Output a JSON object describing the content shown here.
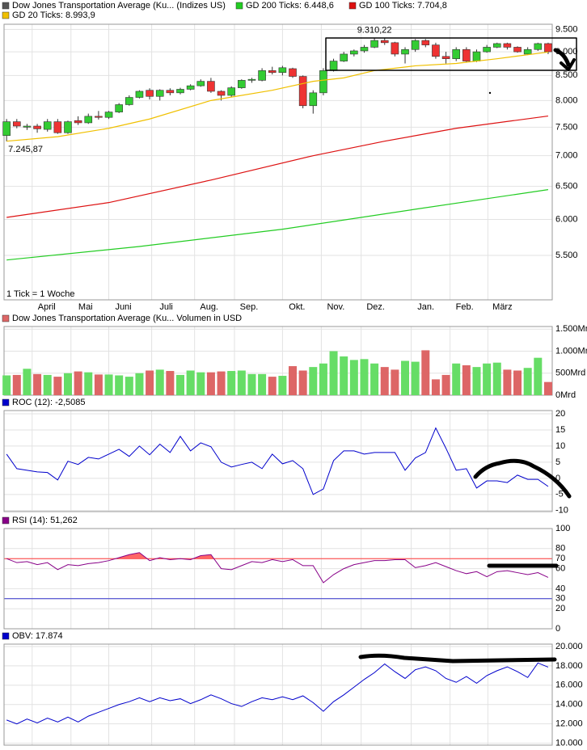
{
  "chart_data": [
    {
      "type": "candlestick",
      "title": "Dow Jones Transportation Average (Ku... (Indizes US)",
      "title_color": "#555555",
      "note": "1 Tick = 1 Woche",
      "log_scale": true,
      "ylim": [
        4940,
        9620
      ],
      "yticks": [
        {
          "value": 9500,
          "label": "9.500"
        },
        {
          "value": 9000,
          "label": "9.000"
        },
        {
          "value": 8500,
          "label": "8.500"
        },
        {
          "value": 8000,
          "label": "8.000"
        },
        {
          "value": 7500,
          "label": "7.500"
        },
        {
          "value": 7000,
          "label": "7.000"
        },
        {
          "value": 6500,
          "label": "6.500"
        },
        {
          "value": 6000,
          "label": "6.000"
        },
        {
          "value": 5500,
          "label": "5.500"
        }
      ],
      "xlim": [
        -0.25,
        53.4
      ],
      "xticks": [
        {
          "value": 2.5,
          "label": "April"
        },
        {
          "value": 6.3,
          "label": "Mai"
        },
        {
          "value": 10,
          "label": "Juni"
        },
        {
          "value": 14.2,
          "label": "Juli"
        },
        {
          "value": 18.4,
          "label": "Aug."
        },
        {
          "value": 22.3,
          "label": "Sep."
        },
        {
          "value": 27,
          "label": "Okt."
        },
        {
          "value": 30.8,
          "label": "Nov."
        },
        {
          "value": 34.7,
          "label": "Dez."
        },
        {
          "value": 39.6,
          "label": "Jan."
        },
        {
          "value": 43.4,
          "label": "Feb."
        },
        {
          "value": 47.1,
          "label": "März"
        }
      ],
      "grid": true,
      "up_color": "#33cc33",
      "down_color": "#ee3333",
      "open": [
        7350,
        7600,
        7500,
        7520,
        7460,
        7600,
        7400,
        7620,
        7580,
        7700,
        7680,
        7780,
        7920,
        8060,
        8200,
        8080,
        8200,
        8150,
        8220,
        8290,
        8380,
        8180,
        8100,
        8250,
        8400,
        8400,
        8600,
        8560,
        8640,
        8480,
        7900,
        8150,
        8600,
        8800,
        8950,
        9020,
        9100,
        9250,
        9200,
        8950,
        9050,
        9250,
        9150,
        8900,
        8850,
        9050,
        8800,
        9000,
        9100,
        9180,
        9100,
        8950,
        9050,
        9180
      ],
      "high": [
        7650,
        7650,
        7560,
        7560,
        7650,
        7650,
        7620,
        7700,
        7750,
        7800,
        7800,
        7950,
        8100,
        8200,
        8240,
        8220,
        8240,
        8250,
        8320,
        8420,
        8450,
        8200,
        8280,
        8420,
        8450,
        8650,
        8680,
        8700,
        8660,
        8500,
        8200,
        8650,
        8850,
        9000,
        9050,
        9150,
        9310.22,
        9300,
        9220,
        9100,
        9280,
        9280,
        9200,
        9000,
        9100,
        9100,
        9050,
        9150,
        9200,
        9200,
        9120,
        9100,
        9200,
        9200
      ],
      "low": [
        7245.87,
        7480,
        7450,
        7400,
        7420,
        7380,
        7380,
        7540,
        7560,
        7640,
        7650,
        7760,
        7900,
        8040,
        8020,
        8000,
        8100,
        8120,
        8200,
        8270,
        8150,
        8000,
        8060,
        8230,
        8350,
        8380,
        8520,
        8500,
        8450,
        7850,
        7750,
        8100,
        8580,
        8780,
        8900,
        8980,
        9080,
        9150,
        8900,
        8750,
        9000,
        9100,
        8850,
        8750,
        8800,
        8780,
        8780,
        8980,
        9080,
        9050,
        8980,
        8930,
        9020,
        8950
      ],
      "close": [
        7600,
        7520,
        7520,
        7470,
        7600,
        7400,
        7600,
        7580,
        7700,
        7680,
        7780,
        7920,
        8060,
        8180,
        8080,
        8200,
        8150,
        8220,
        8290,
        8380,
        8180,
        8100,
        8250,
        8400,
        8420,
        8600,
        8560,
        8660,
        8480,
        7900,
        8150,
        8600,
        8800,
        8950,
        9020,
        9100,
        9250,
        9200,
        8950,
        9050,
        9250,
        9150,
        8900,
        8850,
        9050,
        8800,
        9000,
        9100,
        9180,
        9100,
        9000,
        9050,
        9180,
        9000
      ],
      "series": [
        {
          "name": "GD 200 Ticks: 6.448,6",
          "color": "#22cc22",
          "x": [
            0,
            13,
            27,
            40,
            53
          ],
          "values": [
            5440,
            5620,
            5860,
            6150,
            6449
          ]
        },
        {
          "name": "GD 100 Ticks: 7.704,8",
          "color": "#dd1111",
          "x": [
            0,
            10,
            20,
            30,
            37,
            44,
            53
          ],
          "values": [
            6030,
            6250,
            6600,
            7000,
            7250,
            7480,
            7705
          ]
        },
        {
          "name": "GD 20 Ticks: 8.993,9",
          "color": "#f0c000",
          "x": [
            0,
            5,
            10,
            14,
            20,
            26,
            30,
            33,
            36,
            40,
            44,
            48,
            53
          ],
          "values": [
            7250,
            7330,
            7480,
            7650,
            8000,
            8200,
            8380,
            8450,
            8600,
            8700,
            8750,
            8850,
            8994
          ]
        }
      ],
      "annotations": [
        {
          "text": "9.310,22",
          "x": 36,
          "y": 9310.22
        },
        {
          "text": "7.245,87",
          "x": 0,
          "y": 7245.87
        }
      ]
    },
    {
      "type": "bar",
      "title": "Dow Jones Transportation Average (Ku... Volumen in USD",
      "title_color": "#dd6666",
      "up_color": "#66dd66",
      "down_color": "#dd6666",
      "ylim": [
        0,
        1560
      ],
      "yticks": [
        {
          "value": 1500,
          "label": "1.500Mrd"
        },
        {
          "value": 1000,
          "label": "1.000Mrd"
        },
        {
          "value": 500,
          "label": "500Mrd"
        },
        {
          "value": 0,
          "label": "0Mrd"
        }
      ],
      "xlim": [
        -0.25,
        53.4
      ],
      "values": [
        450,
        460,
        600,
        480,
        460,
        420,
        500,
        540,
        520,
        470,
        470,
        450,
        420,
        500,
        560,
        580,
        550,
        460,
        560,
        520,
        520,
        540,
        550,
        560,
        480,
        480,
        420,
        440,
        660,
        560,
        640,
        720,
        1000,
        880,
        800,
        820,
        720,
        640,
        580,
        780,
        760,
        1020,
        360,
        460,
        720,
        680,
        640,
        720,
        740,
        580,
        560,
        620,
        850,
        300
      ]
    },
    {
      "type": "line",
      "title": "ROC (12): -2,5085",
      "title_color": "#0000cc",
      "color": "#0000cc",
      "ylim": [
        -10.3,
        21
      ],
      "yticks": [
        20,
        15,
        10,
        5,
        0,
        -5,
        -10
      ],
      "xlim": [
        -0.25,
        53.4
      ],
      "values": [
        7.5,
        3,
        2.5,
        2,
        1.8,
        -0.5,
        5.3,
        4.3,
        6.5,
        6,
        7.5,
        9,
        6.8,
        10,
        7.3,
        10.6,
        8,
        13,
        8.5,
        11,
        9.8,
        5,
        3.5,
        4.3,
        5,
        3,
        7.5,
        4.5,
        5.5,
        3,
        -5,
        -3.3,
        5.5,
        8.5,
        8.5,
        7.5,
        8,
        8,
        8,
        2.5,
        6.3,
        8,
        15.6,
        9.3,
        2.5,
        3,
        -3,
        -0.8,
        -0.8,
        -1.3,
        1,
        -0.3,
        -0.3,
        -2.5085
      ]
    },
    {
      "type": "line",
      "title": "RSI (14): 51,262",
      "title_color": "#880088",
      "color": "#880088",
      "fill_above": 70,
      "fill_color": "#ff6666",
      "ylim": [
        0,
        100
      ],
      "yticks": [
        100,
        80,
        70,
        60,
        40,
        30,
        20,
        0
      ],
      "reference_lines": [
        {
          "value": 70,
          "color": "#ff3333"
        },
        {
          "value": 30,
          "color": "#3333cc"
        }
      ],
      "xlim": [
        -0.25,
        53.4
      ],
      "values": [
        70,
        66,
        67,
        64,
        66,
        59,
        64,
        63,
        65,
        66,
        68,
        71,
        74,
        76,
        68,
        71,
        69,
        70,
        69,
        73,
        74,
        60,
        59,
        63,
        67,
        66,
        69,
        67,
        69,
        63,
        63,
        46,
        54,
        60,
        64,
        66,
        68,
        68,
        69,
        69,
        61,
        63,
        66,
        62,
        58,
        55,
        57,
        52,
        57,
        58,
        56,
        54,
        56,
        51.262
      ]
    },
    {
      "type": "line",
      "title": "OBV: 17.874",
      "title_color": "#0000cc",
      "color": "#0000cc",
      "ylim": [
        9800,
        20250
      ],
      "yticks": [
        {
          "value": 20000,
          "label": "20.000"
        },
        {
          "value": 18000,
          "label": "18.000"
        },
        {
          "value": 16000,
          "label": "16.000"
        },
        {
          "value": 14000,
          "label": "14.000"
        },
        {
          "value": 12000,
          "label": "12.000"
        },
        {
          "value": 10000,
          "label": "10.000"
        }
      ],
      "xlim": [
        -0.25,
        53.4
      ],
      "values": [
        12400,
        12000,
        12500,
        12100,
        12600,
        12200,
        12700,
        12200,
        12800,
        13200,
        13600,
        14000,
        14300,
        14700,
        14300,
        14700,
        14400,
        14600,
        14100,
        14500,
        15000,
        14600,
        14100,
        13800,
        14300,
        14700,
        14500,
        14800,
        14500,
        14900,
        14200,
        13300,
        14300,
        15000,
        15800,
        16600,
        17300,
        18200,
        17400,
        16700,
        17600,
        17900,
        17500,
        16700,
        16300,
        16900,
        16200,
        17000,
        17500,
        17900,
        17400,
        16800,
        18300,
        17874
      ]
    }
  ]
}
